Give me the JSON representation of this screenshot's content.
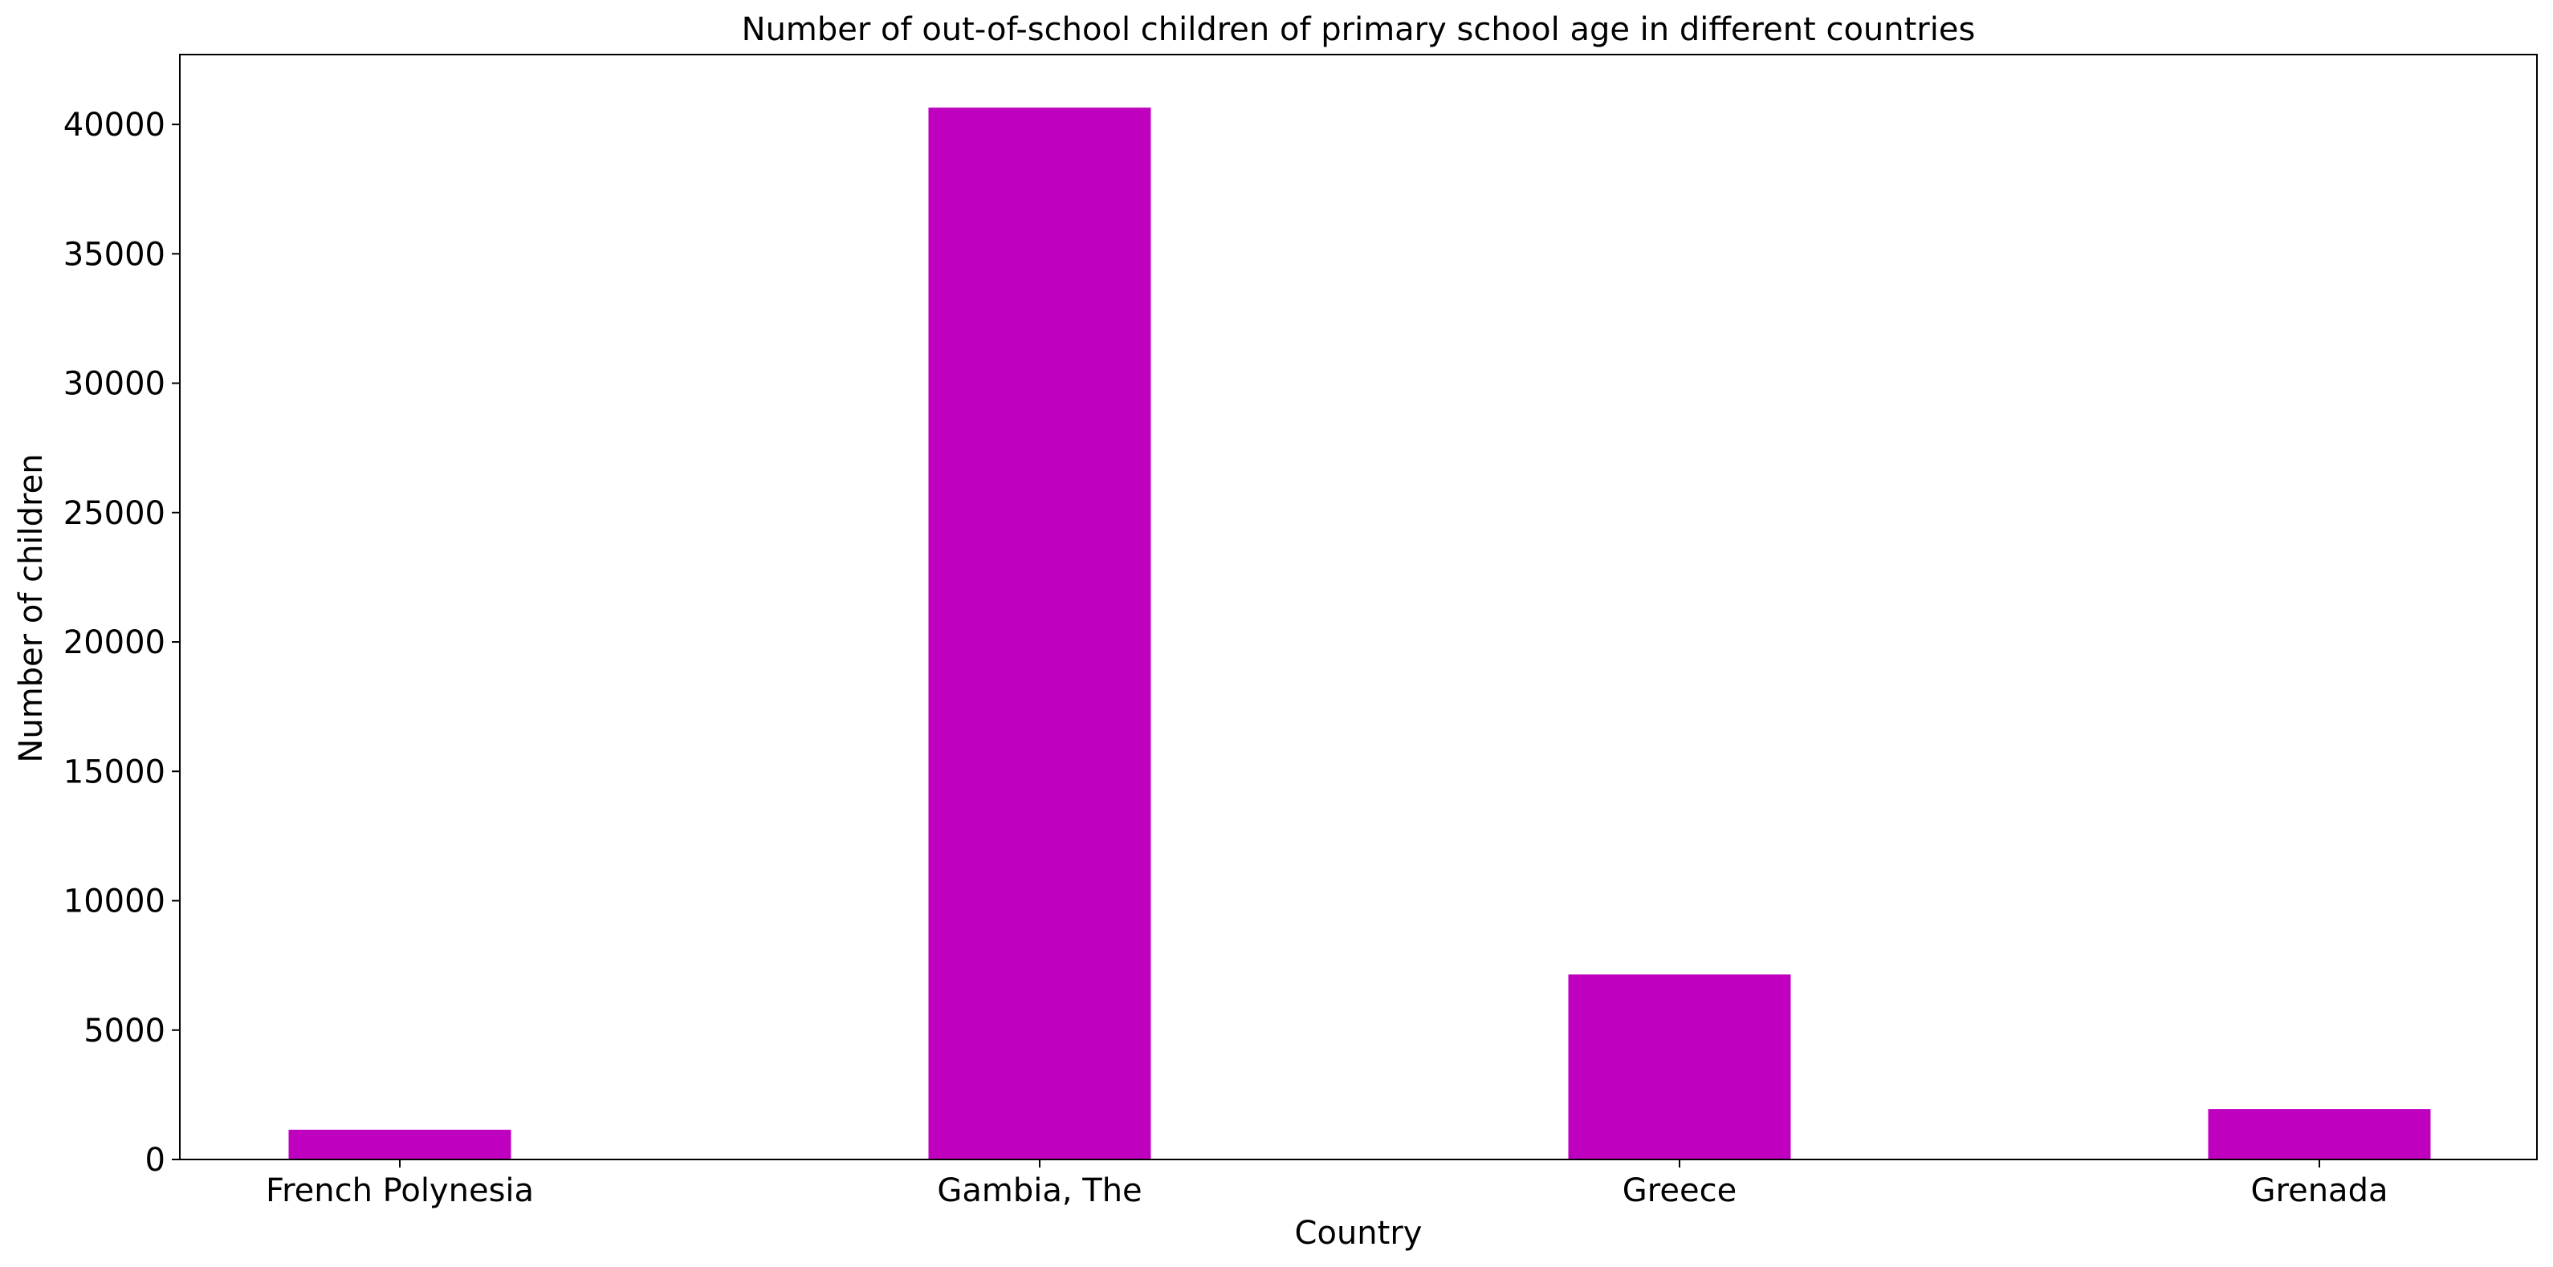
{
  "chart_data": {
    "type": "bar",
    "title": "Number of out-of-school children of primary school age in different countries",
    "xlabel": "Country",
    "ylabel": "Number of children",
    "categories": [
      "French Polynesia",
      "Gambia, The",
      "Greece",
      "Grenada"
    ],
    "values": [
      1150,
      40650,
      7150,
      1950
    ],
    "ylim": [
      0,
      42700
    ],
    "yticks": [
      0,
      5000,
      10000,
      15000,
      20000,
      25000,
      30000,
      35000,
      40000
    ],
    "grid": false,
    "legend": "none",
    "bar_color": "#bf00bf"
  }
}
